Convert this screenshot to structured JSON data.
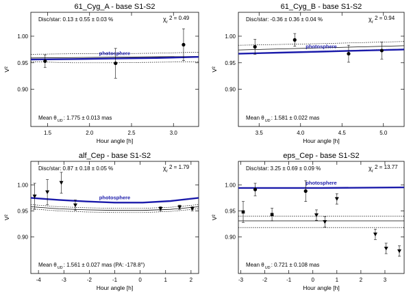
{
  "chart_data": [
    {
      "type": "scatter",
      "title": "61_Cyg_A - base S1-S2",
      "xlabel": "Hour angle [h]",
      "ylabel": "V²",
      "xlim": [
        1.3,
        3.3
      ],
      "ylim": [
        0.83,
        1.045
      ],
      "xticks": [
        1.5,
        2.0,
        2.5,
        3.0
      ],
      "xtick_labels": [
        "1.5",
        "2.0",
        "2.5",
        "3.0"
      ],
      "yticks": [
        0.9,
        0.95,
        1.0
      ],
      "ytick_labels": [
        "0.90",
        "0.95",
        "1.00"
      ],
      "disc_star": "Disc/star:  0.13 ± 0.55 ± 0.03 %",
      "chi2_label": "χ",
      "chi2_sub": "r",
      "chi2_value": "2 =  0.49",
      "diameter_prefix": "Mean θ",
      "diameter_sub": "UD",
      "diameter_value": ": 1.775 ± 0.013 mas",
      "photosphere_label": "photosphere",
      "marker": "circle",
      "series": [
        {
          "name": "measurements",
          "points": [
            {
              "x": 1.47,
              "y": 0.953,
              "err": 0.012
            },
            {
              "x": 2.31,
              "y": 0.949,
              "err": 0.028
            },
            {
              "x": 3.12,
              "y": 0.984,
              "err": 0.03
            }
          ]
        }
      ],
      "photosphere": {
        "x": [
          1.3,
          1.8,
          2.3,
          2.8,
          3.3
        ],
        "y": [
          0.956,
          0.957,
          0.958,
          0.959,
          0.961
        ]
      },
      "fit": {
        "x": [
          1.3,
          3.3
        ],
        "y": [
          0.959,
          0.962
        ]
      },
      "fit_upper": {
        "x": [
          1.3,
          1.8,
          2.3,
          2.8,
          3.3
        ],
        "y": [
          0.966,
          0.967,
          0.967,
          0.968,
          0.97
        ]
      },
      "fit_lower": {
        "x": [
          1.3,
          1.8,
          2.3,
          2.8,
          3.3
        ],
        "y": [
          0.952,
          0.95,
          0.95,
          0.951,
          0.952
        ]
      }
    },
    {
      "type": "scatter",
      "title": "61_Cyg_B - base S1-S2",
      "xlabel": "Hour angle [h]",
      "ylabel": "V²",
      "xlim": [
        3.25,
        5.25
      ],
      "ylim": [
        0.83,
        1.045
      ],
      "xticks": [
        3.5,
        4.0,
        4.5,
        5.0
      ],
      "xtick_labels": [
        "3.5",
        "4.0",
        "4.5",
        "5.0"
      ],
      "yticks": [
        0.9,
        0.95,
        1.0
      ],
      "ytick_labels": [
        "0.90",
        "0.95",
        "1.00"
      ],
      "disc_star": "Disc/star: -0.36 ± 0.36 ± 0.04 %",
      "chi2_label": "χ",
      "chi2_sub": "r",
      "chi2_value": "2 =  0.94",
      "diameter_prefix": "Mean θ",
      "diameter_sub": "UD",
      "diameter_value": ": 1.581 ± 0.022 mas",
      "photosphere_label": "photosphere",
      "marker": "circle",
      "series": [
        {
          "name": "measurements",
          "points": [
            {
              "x": 3.45,
              "y": 0.98,
              "err": 0.014
            },
            {
              "x": 3.93,
              "y": 0.993,
              "err": 0.012
            },
            {
              "x": 4.58,
              "y": 0.967,
              "err": 0.016
            },
            {
              "x": 4.98,
              "y": 0.973,
              "err": 0.016
            }
          ]
        }
      ],
      "photosphere": {
        "x": [
          3.25,
          3.75,
          4.25,
          4.75,
          5.25
        ],
        "y": [
          0.967,
          0.969,
          0.971,
          0.973,
          0.975
        ]
      },
      "fit": {
        "x": [
          3.25,
          5.25
        ],
        "y": [
          0.974,
          0.982
        ]
      },
      "fit_upper": {
        "x": [
          3.25,
          4.25,
          5.25
        ],
        "y": [
          0.983,
          0.986,
          0.99
        ]
      },
      "fit_lower": {
        "x": [
          3.25,
          4.25,
          5.25
        ],
        "y": [
          0.967,
          0.972,
          0.976
        ]
      }
    },
    {
      "type": "scatter",
      "title": "alf_Cep - base S1-S2",
      "xlabel": "Hour angle [h]",
      "ylabel": "V²",
      "xlim": [
        -4.3,
        2.3
      ],
      "ylim": [
        0.83,
        1.045
      ],
      "xticks": [
        -4,
        -3,
        -2,
        -1,
        0,
        1,
        2
      ],
      "xtick_labels": [
        "-4",
        "-3",
        "-2",
        "-1",
        "0",
        "1",
        "2"
      ],
      "yticks": [
        0.9,
        0.95,
        1.0
      ],
      "ytick_labels": [
        "0.90",
        "0.95",
        "1.00"
      ],
      "disc_star": "Disc/star:  0.87 ± 0.18 ± 0.05 %",
      "chi2_label": "χ",
      "chi2_sub": "r",
      "chi2_value": "2 =  1.79",
      "diameter_prefix": "Mean θ",
      "diameter_sub": "UD",
      "diameter_value": ": 1.561 ± 0.027 mas (PA: -178.8°)",
      "photosphere_label": "photosphere",
      "marker": "triangle-down",
      "series": [
        {
          "name": "measurements",
          "points": [
            {
              "x": -4.15,
              "y": 0.978,
              "err": 0.025
            },
            {
              "x": -3.65,
              "y": 0.986,
              "err": 0.024
            },
            {
              "x": -3.1,
              "y": 1.004,
              "err": 0.02
            },
            {
              "x": -2.55,
              "y": 0.961,
              "err": 0.01
            },
            {
              "x": 0.8,
              "y": 0.954,
              "err": 0.004
            },
            {
              "x": 1.55,
              "y": 0.957,
              "err": 0.004
            },
            {
              "x": 2.05,
              "y": 0.954,
              "err": 0.004
            }
          ]
        }
      ],
      "photosphere": {
        "x": [
          -4.3,
          -3.2,
          -2.1,
          -1.0,
          0.1,
          1.2,
          2.3
        ],
        "y": [
          0.975,
          0.971,
          0.968,
          0.966,
          0.966,
          0.969,
          0.975
        ]
      },
      "fit": {
        "x": [
          -4.3,
          -3.2,
          -2.1,
          -1.0,
          0.1,
          1.2,
          2.3
        ],
        "y": [
          0.958,
          0.954,
          0.952,
          0.951,
          0.951,
          0.953,
          0.958
        ]
      },
      "fit_upper": {
        "x": [
          -4.3,
          -3.2,
          -2.1,
          -1.0,
          0.1,
          1.2,
          2.3
        ],
        "y": [
          0.962,
          0.958,
          0.956,
          0.955,
          0.955,
          0.957,
          0.962
        ]
      },
      "fit_lower": {
        "x": [
          -4.3,
          -3.2,
          -2.1,
          -1.0,
          0.1,
          1.2,
          2.3
        ],
        "y": [
          0.954,
          0.95,
          0.948,
          0.947,
          0.947,
          0.949,
          0.954
        ]
      }
    },
    {
      "type": "scatter",
      "title": "eps_Cep - base S1-S2",
      "xlabel": "Hour angle [h]",
      "ylabel": "V²",
      "xlim": [
        -3.1,
        3.8
      ],
      "ylim": [
        0.83,
        1.045
      ],
      "xticks": [
        -3,
        -2,
        -1,
        0,
        1,
        2,
        3
      ],
      "xtick_labels": [
        "-3",
        "-2",
        "-1",
        "0",
        "1",
        "2",
        "3"
      ],
      "yticks": [
        0.9,
        0.95,
        1.0
      ],
      "ytick_labels": [
        "0.90",
        "0.95",
        "1.00"
      ],
      "disc_star": "Disc/star:  3.25 ± 0.69 ± 0.09 %",
      "chi2_label": "χ",
      "chi2_sub": "r",
      "chi2_value": "2 = 13.77",
      "diameter_prefix": "Mean θ",
      "diameter_sub": "UD",
      "diameter_value": ": 0.721 ± 0.108 mas",
      "photosphere_label": "photosphere",
      "marker": "mixed",
      "series": [
        {
          "name": "measurements",
          "points": [
            {
              "x": -2.9,
              "y": 0.948,
              "err": 0.02,
              "m": "square"
            },
            {
              "x": -2.4,
              "y": 0.991,
              "err": 0.012,
              "m": "circle"
            },
            {
              "x": -1.7,
              "y": 0.943,
              "err": 0.012,
              "m": "square"
            },
            {
              "x": -0.3,
              "y": 0.988,
              "err": 0.02,
              "m": "circle"
            },
            {
              "x": 0.15,
              "y": 0.942,
              "err": 0.01,
              "m": "triangle-down"
            },
            {
              "x": 0.5,
              "y": 0.929,
              "err": 0.01,
              "m": "triangle-down"
            },
            {
              "x": 1.0,
              "y": 0.973,
              "err": 0.01,
              "m": "triangle-down"
            },
            {
              "x": 2.6,
              "y": 0.905,
              "err": 0.01,
              "m": "triangle-down"
            },
            {
              "x": 3.05,
              "y": 0.878,
              "err": 0.01,
              "m": "triangle-down"
            },
            {
              "x": 3.6,
              "y": 0.873,
              "err": 0.01,
              "m": "triangle-down"
            }
          ]
        }
      ],
      "photosphere": {
        "x": [
          -3.1,
          0.35,
          3.8
        ],
        "y": [
          0.994,
          0.994,
          0.995
        ]
      },
      "fit": {
        "x": [
          -3.1,
          3.8
        ],
        "y": [
          0.931,
          0.931
        ]
      },
      "fit_upper": {
        "x": [
          -3.1,
          3.8
        ],
        "y": [
          0.94,
          0.94
        ]
      },
      "fit_lower": {
        "x": [
          -3.1,
          3.8
        ],
        "y": [
          0.918,
          0.918
        ]
      }
    }
  ]
}
